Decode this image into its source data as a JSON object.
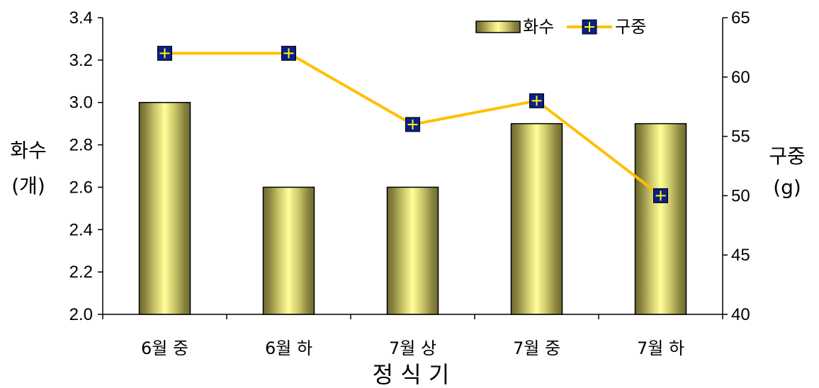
{
  "chart_data": {
    "type": "bar",
    "categories": [
      "6월 중",
      "6월 하",
      "7월 상",
      "7월 중",
      "7월 하"
    ],
    "series": [
      {
        "name": "화수",
        "kind": "bar",
        "axis": "left",
        "values": [
          3.0,
          2.6,
          2.6,
          2.9,
          2.9
        ],
        "colors": [
          "#7f7a3a",
          "#ffff99"
        ]
      },
      {
        "name": "구중",
        "kind": "line",
        "axis": "right",
        "values": [
          62,
          62,
          56,
          58,
          50
        ],
        "color": "#ffc000",
        "marker_fill": "#0b1f8a",
        "marker_cross": "#ffff00"
      }
    ],
    "xlabel": "정 식 기",
    "ylabel": [
      "화수",
      "(개)"
    ],
    "y2label": [
      "구중",
      "(g)"
    ],
    "ylim": [
      2.0,
      3.4
    ],
    "y2lim": [
      40,
      65
    ],
    "yticks": [
      "2.0",
      "2.2",
      "2.4",
      "2.6",
      "2.8",
      "3.0",
      "3.2",
      "3.4"
    ],
    "y2ticks": [
      "40",
      "45",
      "50",
      "55",
      "60",
      "65"
    ],
    "grid": false,
    "legend": "top-right"
  }
}
